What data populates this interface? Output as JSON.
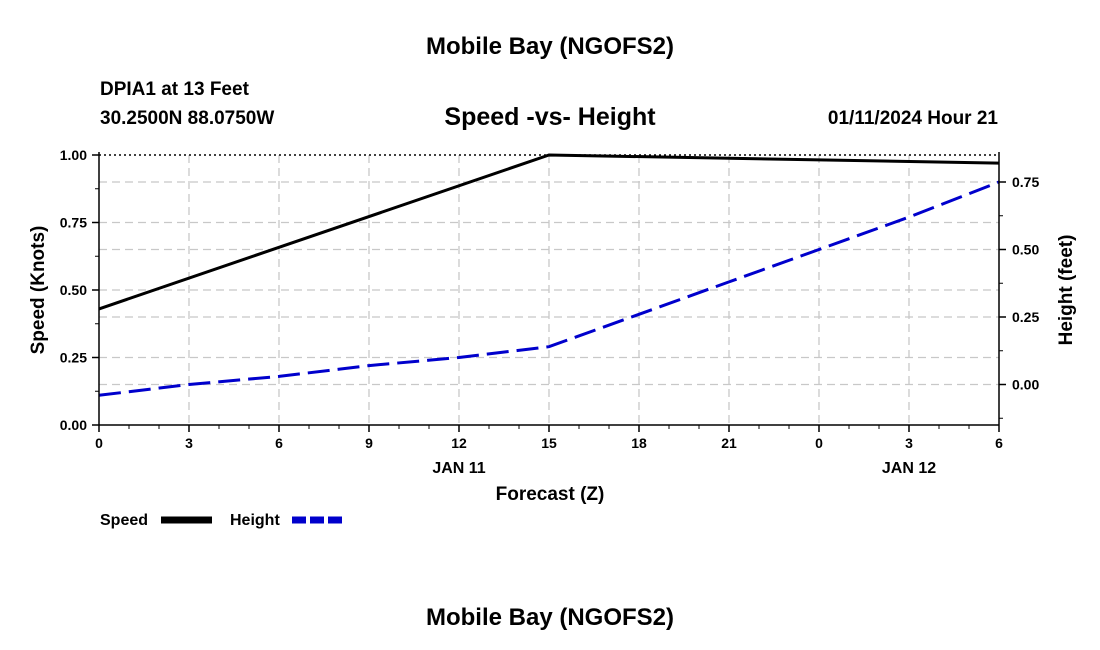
{
  "page": {
    "title": "Mobile Bay (NGOFS2)",
    "station": "DPIA1 at 13 Feet",
    "coords": "30.2500N  88.0750W",
    "subtitle": "Speed -vs- Height",
    "datetime": "01/11/2024 Hour 21",
    "footer_title": "Mobile Bay (NGOFS2)"
  },
  "chart_data": {
    "type": "line",
    "title": "Speed -vs- Height",
    "xlabel": "Forecast (Z)",
    "ylabel": "Speed (Knots)",
    "y2label": "Height (feet)",
    "x_tick_labels": [
      "0",
      "3",
      "6",
      "9",
      "12",
      "15",
      "18",
      "21",
      "0",
      "3",
      "6"
    ],
    "x_date_labels": [
      {
        "at": 4,
        "text": "JAN 11"
      },
      {
        "at": 9,
        "text": "JAN 12"
      }
    ],
    "xlim": [
      0,
      30
    ],
    "ylim": [
      0,
      1
    ],
    "y2lim": [
      -0.15,
      0.85
    ],
    "y_ticks": [
      0,
      0.25,
      0.5,
      0.75,
      1.0
    ],
    "y_tick_labels": [
      "0.00",
      "0.25",
      "0.50",
      "0.75",
      "1.00"
    ],
    "y2_ticks": [
      0,
      0.25,
      0.5,
      0.75
    ],
    "y2_tick_labels": [
      "0.00",
      "0.25",
      "0.50",
      "0.75"
    ],
    "grid": true,
    "legend_position": "bottom-left",
    "series": [
      {
        "name": "Speed",
        "axis": "left",
        "color": "#000000",
        "style": "solid",
        "x": [
          0,
          15,
          30
        ],
        "values": [
          0.43,
          1.0,
          0.97
        ]
      },
      {
        "name": "Height",
        "axis": "right",
        "color": "#0000cc",
        "style": "dashed",
        "x": [
          0,
          3,
          6,
          9,
          12,
          15,
          18,
          21,
          24,
          27,
          30
        ],
        "values": [
          -0.04,
          0.0,
          0.03,
          0.07,
          0.1,
          0.14,
          0.26,
          0.38,
          0.5,
          0.62,
          0.75
        ]
      }
    ]
  }
}
